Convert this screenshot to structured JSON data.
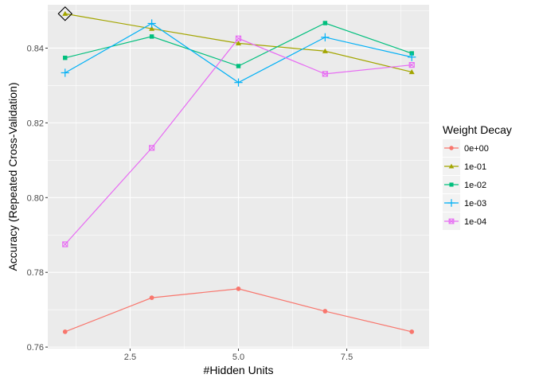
{
  "chart_data": {
    "type": "line",
    "xlabel": "#Hidden Units",
    "ylabel": "Accuracy (Repeated Cross-Validation)",
    "x": [
      1,
      3,
      5,
      7,
      9
    ],
    "xlim": [
      0.6,
      9.4
    ],
    "ylim": [
      0.7596,
      0.8516
    ],
    "x_ticks": [
      2.5,
      5.0,
      7.5
    ],
    "x_tick_labels": [
      "2.5",
      "5.0",
      "7.5"
    ],
    "y_ticks": [
      0.76,
      0.78,
      0.8,
      0.82,
      0.84
    ],
    "y_tick_labels": [
      "0.76",
      "0.78",
      "0.80",
      "0.82",
      "0.84"
    ],
    "grid": true,
    "legend_position": "right",
    "legend_title": "Weight Decay",
    "series": [
      {
        "name": "0e+00",
        "color": "#F8766D",
        "marker": "circle",
        "values": [
          0.7641,
          0.7732,
          0.7756,
          0.7696,
          0.7641
        ]
      },
      {
        "name": "1e-01",
        "color": "#A3A500",
        "marker": "triangle",
        "values": [
          0.8492,
          0.8452,
          0.8413,
          0.8392,
          0.8336
        ]
      },
      {
        "name": "1e-02",
        "color": "#00BF7D",
        "marker": "square",
        "values": [
          0.8374,
          0.8431,
          0.8352,
          0.8467,
          0.8386
        ]
      },
      {
        "name": "1e-03",
        "color": "#00B0F6",
        "marker": "plus",
        "values": [
          0.8334,
          0.8466,
          0.8308,
          0.8429,
          0.8376
        ]
      },
      {
        "name": "1e-04",
        "color": "#E76BF3",
        "marker": "square-cross",
        "values": [
          0.7875,
          0.8133,
          0.8426,
          0.8331,
          0.8355
        ]
      }
    ],
    "highlight": {
      "series": "1e-01",
      "x": 1,
      "marker": "diamond",
      "color": "#000000"
    }
  }
}
